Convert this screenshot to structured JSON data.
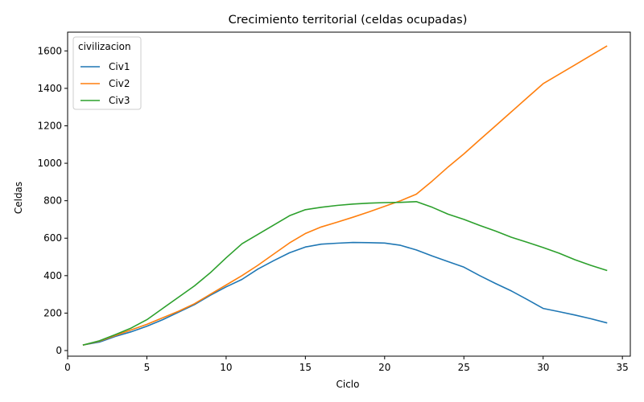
{
  "chart_data": {
    "type": "line",
    "title": "Crecimiento territorial (celdas ocupadas)",
    "xlabel": "Ciclo",
    "ylabel": "Celdas",
    "xlim": [
      0,
      35.5
    ],
    "ylim": [
      -30,
      1700
    ],
    "xticks": [
      0,
      5,
      10,
      15,
      20,
      25,
      30,
      35
    ],
    "yticks": [
      0,
      200,
      400,
      600,
      800,
      1000,
      1200,
      1400,
      1600
    ],
    "grid": false,
    "legend": {
      "title": "civilizacion",
      "placement": "top-left"
    },
    "x": [
      1,
      2,
      3,
      4,
      5,
      6,
      7,
      8,
      9,
      10,
      11,
      12,
      13,
      14,
      15,
      16,
      17,
      18,
      19,
      20,
      21,
      22,
      23,
      24,
      25,
      26,
      27,
      28,
      29,
      30,
      31,
      32,
      33,
      34
    ],
    "series": [
      {
        "name": "Civ1",
        "color": "#1f77b4",
        "values": [
          30,
          45,
          75,
          100,
          130,
          165,
          205,
          245,
          295,
          340,
          380,
          435,
          480,
          522,
          553,
          568,
          573,
          577,
          576,
          574,
          562,
          537,
          505,
          475,
          445,
          400,
          358,
          318,
          272,
          225,
          208,
          190,
          170,
          148
        ]
      },
      {
        "name": "Civ2",
        "color": "#ff7f0e",
        "values": [
          30,
          50,
          80,
          110,
          140,
          175,
          210,
          250,
          300,
          350,
          400,
          455,
          515,
          575,
          625,
          660,
          685,
          712,
          740,
          770,
          800,
          835,
          905,
          980,
          1050,
          1125,
          1200,
          1275,
          1350,
          1425,
          1475,
          1525,
          1575,
          1625
        ]
      },
      {
        "name": "Civ3",
        "color": "#2ca02c",
        "values": [
          30,
          52,
          85,
          120,
          165,
          225,
          285,
          345,
          415,
          495,
          570,
          620,
          670,
          720,
          752,
          765,
          775,
          782,
          787,
          790,
          791,
          795,
          765,
          728,
          700,
          668,
          638,
          605,
          578,
          550,
          520,
          485,
          455,
          428
        ]
      }
    ]
  }
}
